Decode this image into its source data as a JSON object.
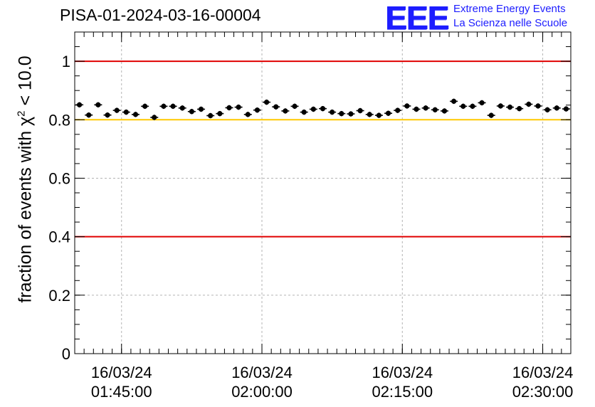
{
  "header": {
    "run_title": "PISA-01-2024-03-16-00004",
    "logo_mark": "EEE",
    "logo_line1": "Extreme Energy Events",
    "logo_line2": "La Scienza nelle Scuole",
    "logo_color": "#1d1dff"
  },
  "colors": {
    "threshold_red": "#e00000",
    "threshold_yellow": "#ffc800",
    "markers": "#000000",
    "grid": "#b4b4b4"
  },
  "chart_data": {
    "type": "scatter",
    "title": "PISA-01-2024-03-16-00004",
    "ylabel_prefix": "fraction of events with χ",
    "ylabel_power": "2",
    "ylabel_suffix": " < 10.0",
    "xlabel": "",
    "x_axis_type": "time",
    "xlim": [
      "2024-03-16 01:40:00",
      "2024-03-16 02:33:00"
    ],
    "ylim": [
      0,
      1.1
    ],
    "y_ticks": [
      0,
      0.2,
      0.4,
      0.6,
      0.8,
      1
    ],
    "y_tick_labels": [
      "0",
      "0.2",
      "0.4",
      "0.6",
      "0.8",
      "1"
    ],
    "x_ticks": [
      "2024-03-16 01:45:00",
      "2024-03-16 02:00:00",
      "2024-03-16 02:15:00",
      "2024-03-16 02:30:00"
    ],
    "x_tick_labels": [
      {
        "date": "16/03/24",
        "time": "01:45:00"
      },
      {
        "date": "16/03/24",
        "time": "02:00:00"
      },
      {
        "date": "16/03/24",
        "time": "02:15:00"
      },
      {
        "date": "16/03/24",
        "time": "02:30:00"
      }
    ],
    "grid": true,
    "reference_lines": [
      {
        "y": 1.0,
        "color": "#e00000"
      },
      {
        "y": 0.8,
        "color": "#ffc800"
      },
      {
        "y": 0.4,
        "color": "#e00000"
      }
    ],
    "x": [
      "01:40:30",
      "01:41:30",
      "01:42:30",
      "01:43:30",
      "01:44:30",
      "01:45:30",
      "01:46:30",
      "01:47:30",
      "01:48:30",
      "01:49:30",
      "01:50:30",
      "01:51:30",
      "01:52:30",
      "01:53:30",
      "01:54:30",
      "01:55:30",
      "01:56:30",
      "01:57:30",
      "01:58:30",
      "01:59:30",
      "02:00:30",
      "02:01:30",
      "02:02:30",
      "02:03:30",
      "02:04:30",
      "02:05:30",
      "02:06:30",
      "02:07:30",
      "02:08:30",
      "02:09:30",
      "02:10:30",
      "02:11:30",
      "02:12:30",
      "02:13:30",
      "02:14:30",
      "02:15:30",
      "02:16:30",
      "02:17:30",
      "02:18:30",
      "02:19:30",
      "02:20:30",
      "02:21:30",
      "02:22:30",
      "02:23:30",
      "02:24:30",
      "02:25:30",
      "02:26:30",
      "02:27:30",
      "02:28:30",
      "02:29:30",
      "02:30:30",
      "02:31:30",
      "02:32:30"
    ],
    "values": [
      0.851,
      0.816,
      0.851,
      0.816,
      0.832,
      0.826,
      0.818,
      0.846,
      0.808,
      0.846,
      0.846,
      0.84,
      0.828,
      0.836,
      0.814,
      0.821,
      0.841,
      0.843,
      0.818,
      0.833,
      0.86,
      0.844,
      0.83,
      0.846,
      0.826,
      0.836,
      0.838,
      0.826,
      0.821,
      0.82,
      0.831,
      0.818,
      0.815,
      0.822,
      0.832,
      0.847,
      0.836,
      0.84,
      0.834,
      0.83,
      0.863,
      0.846,
      0.846,
      0.858,
      0.815,
      0.847,
      0.843,
      0.838,
      0.853,
      0.847,
      0.834,
      0.84,
      0.837
    ],
    "errors": [
      0.009,
      0.009,
      0.009,
      0.009,
      0.009,
      0.009,
      0.009,
      0.009,
      0.009,
      0.009,
      0.009,
      0.009,
      0.009,
      0.009,
      0.009,
      0.009,
      0.009,
      0.009,
      0.009,
      0.009,
      0.009,
      0.009,
      0.009,
      0.009,
      0.009,
      0.009,
      0.009,
      0.009,
      0.009,
      0.009,
      0.009,
      0.009,
      0.009,
      0.009,
      0.009,
      0.009,
      0.009,
      0.009,
      0.009,
      0.009,
      0.009,
      0.009,
      0.009,
      0.009,
      0.009,
      0.009,
      0.009,
      0.009,
      0.009,
      0.009,
      0.009,
      0.009,
      0.009
    ]
  }
}
